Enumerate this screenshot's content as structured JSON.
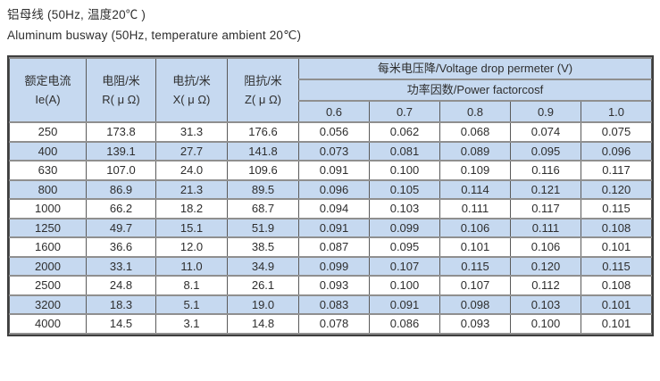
{
  "title": {
    "line1_zh": "铝母线 (50Hz, 温度20℃ )",
    "line2_en": "Aluminum busway (50Hz, temperature ambient 20℃)"
  },
  "table": {
    "headers": {
      "current": "额定电流",
      "current_sub": "Ie(A)",
      "resistance": "电阻/米",
      "resistance_sub": "R( μ Ω)",
      "reactance": "电抗/米",
      "reactance_sub": "X( μ Ω)",
      "impedance": "阻抗/米",
      "impedance_sub": "Z( μ Ω)",
      "voltage_drop": "每米电压降/Voltage drop permeter (V)",
      "power_factor": "功率因数/Power factorcosf",
      "pf_values": [
        "0.6",
        "0.7",
        "0.8",
        "0.9",
        "1.0"
      ]
    },
    "rows": [
      [
        "250",
        "173.8",
        "31.3",
        "176.6",
        "0.056",
        "0.062",
        "0.068",
        "0.074",
        "0.075"
      ],
      [
        "400",
        "139.1",
        "27.7",
        "141.8",
        "0.073",
        "0.081",
        "0.089",
        "0.095",
        "0.096"
      ],
      [
        "630",
        "107.0",
        "24.0",
        "109.6",
        "0.091",
        "0.100",
        "0.109",
        "0.116",
        "0.117"
      ],
      [
        "800",
        "86.9",
        "21.3",
        "89.5",
        "0.096",
        "0.105",
        "0.114",
        "0.121",
        "0.120"
      ],
      [
        "1000",
        "66.2",
        "18.2",
        "68.7",
        "0.094",
        "0.103",
        "0.111",
        "0.117",
        "0.115"
      ],
      [
        "1250",
        "49.7",
        "15.1",
        "51.9",
        "0.091",
        "0.099",
        "0.106",
        "0.111",
        "0.108"
      ],
      [
        "1600",
        "36.6",
        "12.0",
        "38.5",
        "0.087",
        "0.095",
        "0.101",
        "0.106",
        "0.101"
      ],
      [
        "2000",
        "33.1",
        "11.0",
        "34.9",
        "0.099",
        "0.107",
        "0.115",
        "0.120",
        "0.115"
      ],
      [
        "2500",
        "24.8",
        "8.1",
        "26.1",
        "0.093",
        "0.100",
        "0.107",
        "0.112",
        "0.108"
      ],
      [
        "3200",
        "18.3",
        "5.1",
        "19.0",
        "0.083",
        "0.091",
        "0.098",
        "0.103",
        "0.101"
      ],
      [
        "4000",
        "14.5",
        "3.1",
        "14.8",
        "0.078",
        "0.086",
        "0.093",
        "0.100",
        "0.101"
      ]
    ]
  },
  "colors": {
    "page_bg": "#ffffff",
    "header_bg": "#c6d9f0",
    "stripe_bg": "#c6d9f0",
    "border_dark": "#3e3e3e",
    "grid_v": "#5a5a5a",
    "grid_h": "#8f8f8f",
    "text": "#2e2e2e"
  }
}
